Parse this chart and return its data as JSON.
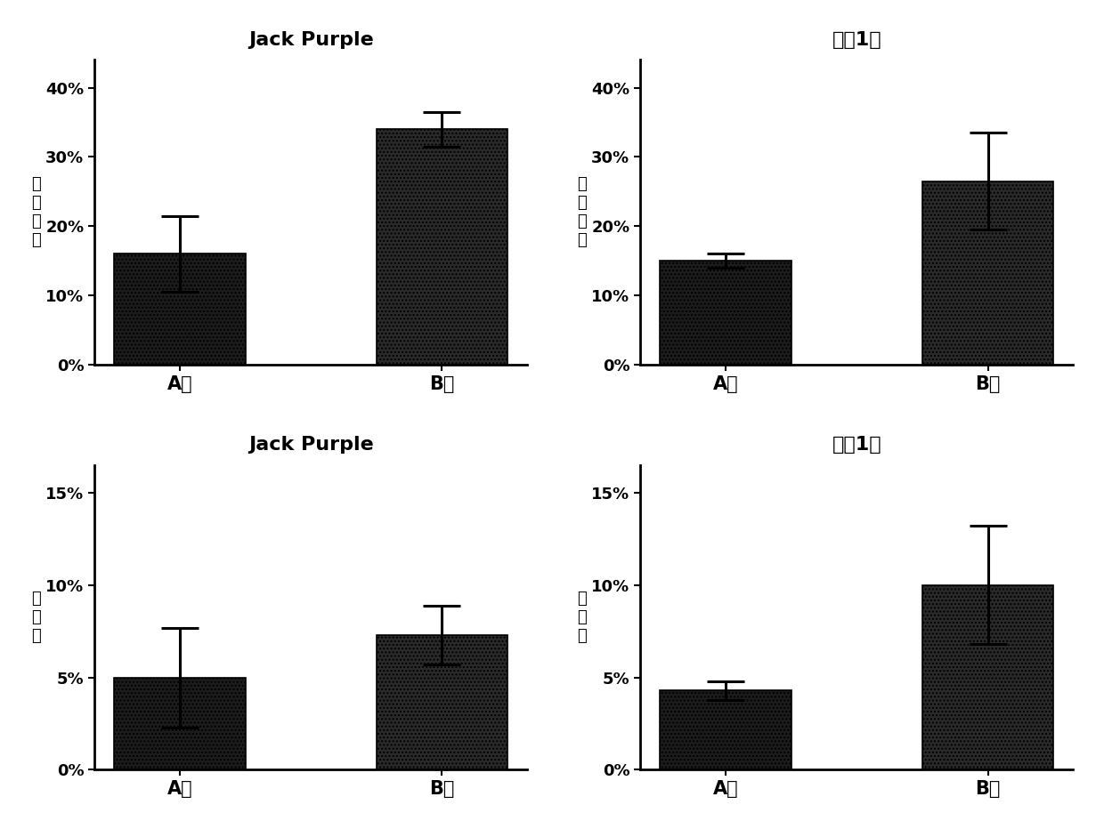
{
  "subplots": [
    {
      "title": "Jack Purple",
      "title_bold": true,
      "title_italic": false,
      "ylabel": "芽伸长率",
      "categories": [
        "A组",
        "B组"
      ],
      "values": [
        0.16,
        0.34
      ],
      "errors": [
        0.055,
        0.025
      ],
      "ylim": [
        0,
        0.44
      ],
      "yticks": [
        0.0,
        0.1,
        0.2,
        0.3,
        0.4
      ],
      "yticklabels": [
        "0%",
        "10%",
        "20%",
        "30%",
        "40%"
      ]
    },
    {
      "title": "天隔1号",
      "title_bold": false,
      "title_italic": false,
      "ylabel": "芽伸长率",
      "categories": [
        "A组",
        "B组"
      ],
      "values": [
        0.15,
        0.265
      ],
      "errors": [
        0.01,
        0.07
      ],
      "ylim": [
        0,
        0.44
      ],
      "yticks": [
        0.0,
        0.1,
        0.2,
        0.3,
        0.4
      ],
      "yticklabels": [
        "0%",
        "10%",
        "20%",
        "30%",
        "40%"
      ]
    },
    {
      "title": "Jack Purple",
      "title_bold": true,
      "title_italic": false,
      "ylabel": "转化率",
      "categories": [
        "A组",
        "B组"
      ],
      "values": [
        0.05,
        0.073
      ],
      "errors": [
        0.027,
        0.016
      ],
      "ylim": [
        0,
        0.165
      ],
      "yticks": [
        0.0,
        0.05,
        0.1,
        0.15
      ],
      "yticklabels": [
        "0%",
        "5%",
        "10%",
        "15%"
      ]
    },
    {
      "title": "天隔1号",
      "title_bold": false,
      "title_italic": false,
      "ylabel": "转化率",
      "categories": [
        "A组",
        "B组"
      ],
      "values": [
        0.043,
        0.1
      ],
      "errors": [
        0.005,
        0.032
      ],
      "ylim": [
        0,
        0.165
      ],
      "yticks": [
        0.0,
        0.05,
        0.1,
        0.15
      ],
      "yticklabels": [
        "0%",
        "5%",
        "10%",
        "15%"
      ]
    }
  ],
  "background_color": "#ffffff",
  "figure_size": [
    12.4,
    9.32
  ],
  "dpi": 100
}
